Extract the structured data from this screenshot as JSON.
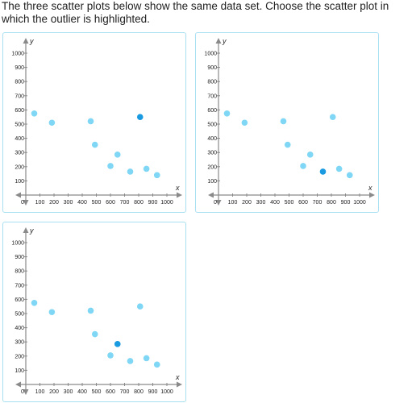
{
  "question": {
    "text": "The three scatter plots below show the same data set. Choose the scatter plot in which the outlier is highlighted."
  },
  "colors": {
    "point": "#7fd7f5",
    "highlight": "#1a9ae0",
    "axis": "#8a8a8a",
    "card_border": "#a8e0f2",
    "text": "#222222"
  },
  "chart_data": [
    {
      "type": "scatter",
      "xlabel": "x",
      "ylabel": "y",
      "xlim": [
        0,
        1000
      ],
      "ylim": [
        0,
        1000
      ],
      "x_ticks": [
        "0",
        "100",
        "200",
        "300",
        "400",
        "500",
        "600",
        "700",
        "800",
        "900",
        "1000"
      ],
      "y_ticks": [
        "100",
        "200",
        "300",
        "400",
        "500",
        "600",
        "700",
        "800",
        "900",
        "1000"
      ],
      "points": [
        {
          "x": 60,
          "y": 575
        },
        {
          "x": 185,
          "y": 510
        },
        {
          "x": 460,
          "y": 520
        },
        {
          "x": 490,
          "y": 355
        },
        {
          "x": 600,
          "y": 205
        },
        {
          "x": 650,
          "y": 285
        },
        {
          "x": 740,
          "y": 165
        },
        {
          "x": 810,
          "y": 550
        },
        {
          "x": 855,
          "y": 185
        },
        {
          "x": 930,
          "y": 140
        }
      ],
      "highlighted_index": 7
    },
    {
      "type": "scatter",
      "xlabel": "x",
      "ylabel": "y",
      "xlim": [
        0,
        1000
      ],
      "ylim": [
        0,
        1000
      ],
      "x_ticks": [
        "0",
        "100",
        "200",
        "300",
        "400",
        "500",
        "600",
        "700",
        "800",
        "900",
        "1000"
      ],
      "y_ticks": [
        "100",
        "200",
        "300",
        "400",
        "500",
        "600",
        "700",
        "800",
        "900",
        "1000"
      ],
      "points": [
        {
          "x": 60,
          "y": 575
        },
        {
          "x": 185,
          "y": 510
        },
        {
          "x": 460,
          "y": 520
        },
        {
          "x": 490,
          "y": 355
        },
        {
          "x": 600,
          "y": 205
        },
        {
          "x": 650,
          "y": 285
        },
        {
          "x": 740,
          "y": 165
        },
        {
          "x": 810,
          "y": 550
        },
        {
          "x": 855,
          "y": 185
        },
        {
          "x": 930,
          "y": 140
        }
      ],
      "highlighted_index": 6
    },
    {
      "type": "scatter",
      "xlabel": "x",
      "ylabel": "y",
      "xlim": [
        0,
        1000
      ],
      "ylim": [
        0,
        1000
      ],
      "x_ticks": [
        "0",
        "100",
        "200",
        "300",
        "400",
        "500",
        "600",
        "700",
        "800",
        "900",
        "1000"
      ],
      "y_ticks": [
        "100",
        "200",
        "300",
        "400",
        "500",
        "600",
        "700",
        "800",
        "900",
        "1000"
      ],
      "points": [
        {
          "x": 60,
          "y": 575
        },
        {
          "x": 185,
          "y": 510
        },
        {
          "x": 460,
          "y": 520
        },
        {
          "x": 490,
          "y": 355
        },
        {
          "x": 600,
          "y": 205
        },
        {
          "x": 650,
          "y": 285
        },
        {
          "x": 740,
          "y": 165
        },
        {
          "x": 810,
          "y": 550
        },
        {
          "x": 855,
          "y": 185
        },
        {
          "x": 930,
          "y": 140
        }
      ],
      "highlighted_index": 5
    }
  ]
}
